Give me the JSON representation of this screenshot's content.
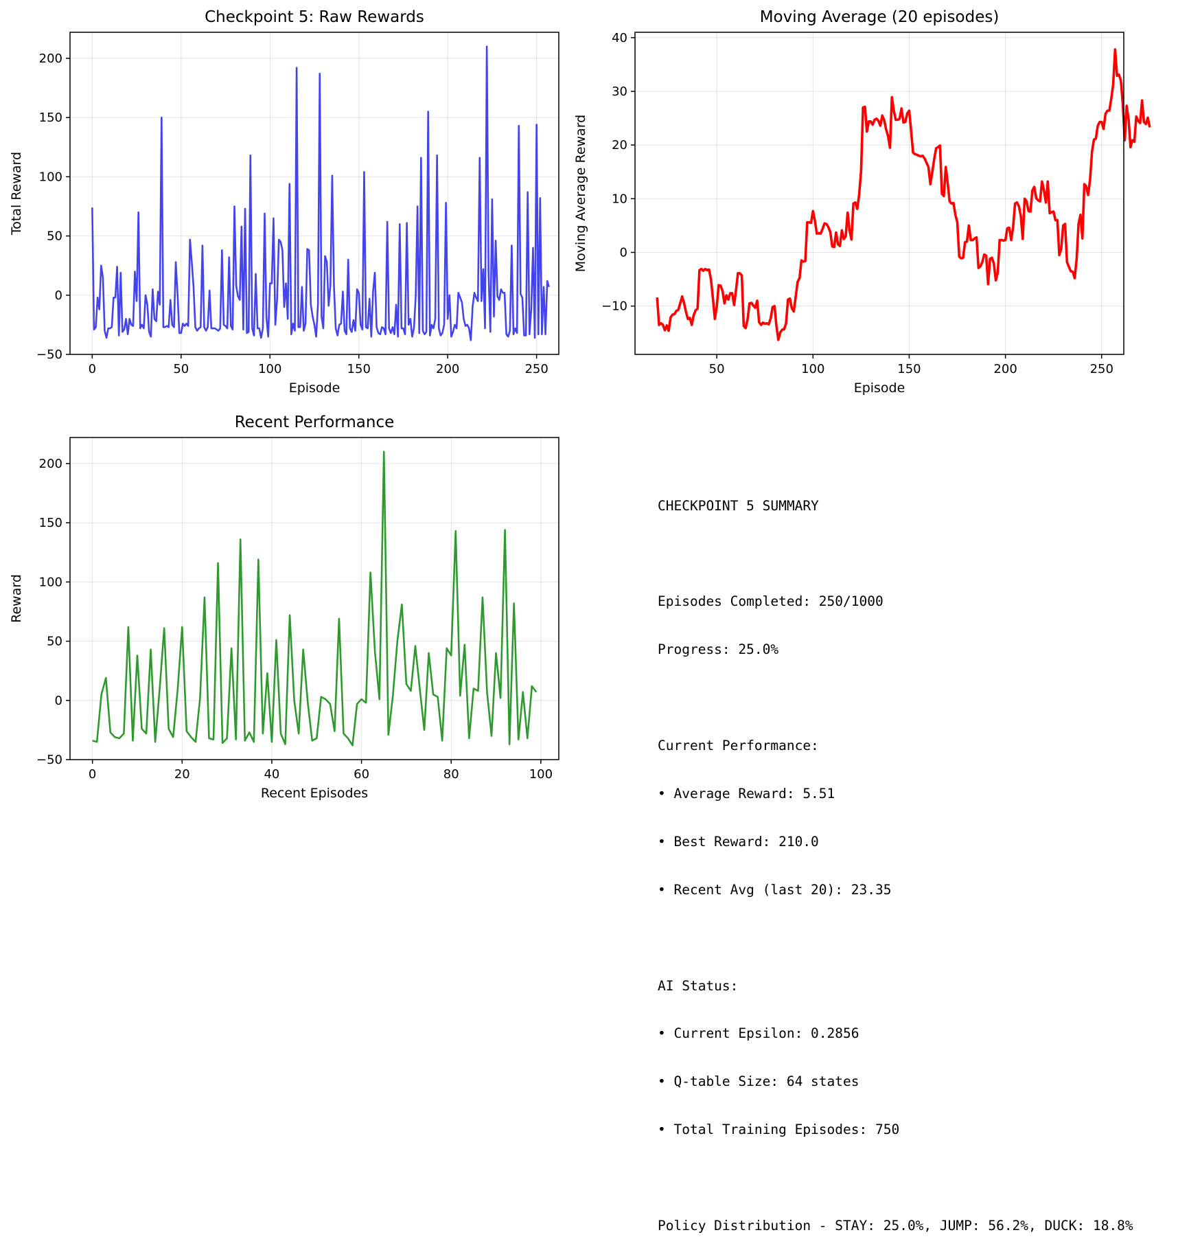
{
  "chart_data": [
    {
      "type": "line",
      "title": "Checkpoint 5: Raw Rewards",
      "xlabel": "Episode",
      "ylabel": "Total Reward",
      "xlim": [
        -12.5,
        262.5
      ],
      "ylim": [
        -50,
        222
      ],
      "xticks": [
        0,
        50,
        100,
        150,
        200,
        250
      ],
      "yticks": [
        -50,
        0,
        50,
        100,
        150,
        200
      ],
      "grid": true,
      "color": "#4444ee",
      "series": [
        {
          "x_start": 0,
          "values": [
            74,
            -29,
            -27,
            -2,
            -12,
            25,
            15,
            -30,
            -36,
            -28,
            -28,
            -27,
            -2,
            -2,
            24,
            -34,
            19,
            -31,
            -29,
            -20,
            -33,
            -20,
            -25,
            -26,
            20,
            -5,
            70,
            -28,
            -25,
            -28,
            0,
            -8,
            -31,
            -35,
            5,
            -20,
            -22,
            3,
            -8,
            150,
            -27,
            -27,
            -26,
            -27,
            -4,
            -25,
            -27,
            28,
            1,
            -32,
            -32,
            -24,
            -26,
            -24,
            -26,
            47,
            28,
            7,
            -27,
            -30,
            -28,
            -27,
            42,
            -27,
            -30,
            -27,
            4,
            -28,
            -28,
            -28,
            -29,
            -30,
            -28,
            38,
            -25,
            -26,
            -28,
            32,
            -26,
            -29,
            75,
            8,
            -1,
            -4,
            58,
            -29,
            73,
            -32,
            -31,
            118,
            -28,
            -34,
            18,
            -28,
            -28,
            -36,
            -28,
            69,
            -19,
            -35,
            10,
            10,
            65,
            -25,
            -4,
            47,
            45,
            38,
            -10,
            10,
            -20,
            94,
            -33,
            -24,
            -30,
            192,
            -27,
            -27,
            7,
            -30,
            -24,
            39,
            38,
            -8,
            -18,
            -25,
            -35,
            -8,
            187,
            -18,
            -28,
            33,
            28,
            -9,
            8,
            101,
            8,
            -28,
            -34,
            -25,
            -24,
            3,
            -30,
            -33,
            30,
            -28,
            -31,
            -21,
            -30,
            5,
            2,
            -25,
            -29,
            104,
            -27,
            -28,
            -3,
            -35,
            3,
            19,
            -27,
            -32,
            -33,
            -27,
            -28,
            -33,
            62,
            -28,
            -32,
            -27,
            -33,
            -8,
            -35,
            60,
            -28,
            -28,
            -33,
            61,
            -25,
            -20,
            -35,
            -28,
            -1,
            75,
            -32,
            116,
            -30,
            -33,
            -31,
            155,
            -34,
            -25,
            -28,
            -20,
            118,
            -28,
            -34,
            -32,
            -25,
            78,
            -20,
            0,
            -35,
            -31,
            -25,
            -28,
            2,
            -2,
            -6,
            -20,
            -26,
            -25,
            -28,
            -38,
            -10,
            2,
            -2,
            -5,
            116,
            -5,
            22,
            -28,
            210,
            18,
            -31,
            81,
            -18,
            46,
            -1,
            -4,
            5,
            2,
            2,
            -33,
            -35,
            -30,
            42,
            -33,
            -28,
            -32,
            143,
            1,
            -2,
            -34,
            -34,
            87,
            -33,
            -12,
            40,
            -36,
            144,
            -33,
            82,
            -33,
            7,
            -33,
            12,
            7
          ]
        }
      ]
    },
    {
      "type": "line",
      "title": "Moving Average (20 episodes)",
      "xlabel": "Episode",
      "ylabel": "Moving Average Reward",
      "xlim": [
        7.5,
        261.5
      ],
      "ylim": [
        -19,
        41
      ],
      "xticks": [
        50,
        100,
        150,
        200,
        250
      ],
      "yticks": [
        -10,
        0,
        10,
        20,
        30,
        40
      ],
      "grid": true,
      "color": "#ff0000",
      "series": [
        {
          "x_start": 19,
          "values": [
            -8.4,
            -13.5,
            -13.2,
            -13.5,
            -14.5,
            -13.6,
            -14.6,
            -12.1,
            -11.6,
            -11.5,
            -10.9,
            -10.7,
            -9.5,
            -8.2,
            -9.4,
            -11.1,
            -12.4,
            -12.2,
            -13.5,
            -11.7,
            -10.8,
            -10.5,
            -3.3,
            -3.1,
            -3.4,
            -3.1,
            -3.3,
            -3.2,
            -5.1,
            -8.6,
            -12.4,
            -10.1,
            -6.1,
            -6.2,
            -7.2,
            -9.5,
            -8.0,
            -8.8,
            -7.6,
            -7.6,
            -9.8,
            -7.0,
            -3.9,
            -3.9,
            -4.3,
            -13.7,
            -14.1,
            -12.5,
            -9.5,
            -9.4,
            -9.9,
            -10.3,
            -9.0,
            -13.0,
            -13.5,
            -13.1,
            -13.3,
            -13.2,
            -13.4,
            -12.3,
            -10.2,
            -10.0,
            -13.7,
            -16.3,
            -14.9,
            -14.4,
            -14.3,
            -13.2,
            -8.8,
            -8.6,
            -10.4,
            -11.0,
            -8.3,
            -5.5,
            -4.8,
            -1.5,
            -1.7,
            -1.6,
            5.6,
            5.6,
            5.5,
            7.7,
            5.9,
            3.5,
            3.6,
            3.5,
            4.4,
            5.4,
            5.3,
            4.7,
            3.8,
            1.1,
            1.0,
            3.7,
            1.5,
            1.2,
            4.1,
            2.5,
            3.0,
            7.4,
            4.1,
            2.4,
            9.1,
            9.3,
            8.1,
            10.8,
            15.2,
            27.0,
            27.1,
            22.5,
            24.4,
            24.4,
            23.8,
            24.7,
            24.9,
            24.5,
            23.6,
            25.5,
            24.6,
            22.9,
            21.7,
            19.5,
            28.9,
            26.4,
            24.7,
            24.7,
            24.9,
            26.8,
            24.2,
            24.3,
            25.9,
            26.4,
            22.6,
            18.6,
            18.3,
            18.2,
            18.0,
            17.9,
            18.0,
            17.5,
            16.7,
            15.9,
            12.7,
            15.0,
            17.4,
            19.4,
            19.6,
            19.9,
            10.9,
            10.5,
            15.9,
            12.9,
            9.5,
            9.1,
            9.2,
            7.0,
            5.6,
            -0.8,
            -1.1,
            -1.0,
            1.9,
            2.0,
            5.0,
            2.3,
            2.3,
            2.6,
            2.8,
            -2.9,
            -2.6,
            -1.8,
            -0.4,
            -0.6,
            -5.9,
            -1.2,
            -1.0,
            -2.1,
            -5.2,
            -3.8,
            2.3,
            2.3,
            2.2,
            2.3,
            4.5,
            4.6,
            2.3,
            4.7,
            9.1,
            9.3,
            8.6,
            6.8,
            2.5,
            10.0,
            9.5,
            7.7,
            7.6,
            11.5,
            12.2,
            10.1,
            9.7,
            9.5,
            13.2,
            11.6,
            9.3,
            13.2,
            7.3,
            7.5,
            7.6,
            6.0,
            6.0,
            -0.5,
            0.7,
            5.0,
            5.3,
            -1.8,
            -2.7,
            -3.5,
            -3.6,
            -4.8,
            -1.3,
            5.3,
            7.0,
            2.6,
            12.7,
            12.3,
            10.7,
            13.6,
            18.8,
            21.0,
            21.2,
            23.6,
            24.3,
            24.3,
            23.0,
            25.8,
            26.4,
            26.4,
            28.6,
            31.3,
            37.8,
            32.9,
            33.1,
            32.0,
            27.6,
            20.9,
            27.3,
            24.8,
            19.6,
            20.9,
            20.6,
            25.3,
            24.5,
            24.1,
            28.3,
            24.3,
            23.9,
            25.1,
            23.3
          ]
        }
      ]
    },
    {
      "type": "line",
      "title": "Recent Performance",
      "xlabel": "Recent Episodes",
      "ylabel": "Reward",
      "xlim": [
        -5,
        104
      ],
      "ylim": [
        -50,
        222
      ],
      "xticks": [
        0,
        20,
        40,
        60,
        80,
        100
      ],
      "yticks": [
        -50,
        0,
        50,
        100,
        150,
        200
      ],
      "grid": true,
      "color": "#2e9a2e",
      "series": [
        {
          "x_start": 0,
          "values": [
            -34,
            -35,
            5,
            19,
            -27,
            -31,
            -32,
            -28,
            62,
            -34,
            38,
            -24,
            -28,
            43,
            -35,
            10,
            61,
            -24,
            -31,
            9,
            62,
            -26,
            -31,
            -35,
            2,
            87,
            -32,
            -33,
            116,
            -36,
            -32,
            44,
            -33,
            136,
            -34,
            -27,
            -35,
            119,
            -28,
            23,
            -35,
            51,
            -28,
            -37,
            72,
            0,
            -28,
            43,
            -1,
            -34,
            -32,
            3,
            1,
            -3,
            -26,
            69,
            -28,
            -32,
            -38,
            -3,
            1,
            -2,
            108,
            41,
            1,
            210,
            -29,
            4,
            50,
            81,
            14,
            8,
            46,
            10,
            -25,
            40,
            5,
            3,
            -34,
            44,
            38,
            143,
            4,
            47,
            -32,
            10,
            8,
            87,
            7,
            -30,
            40,
            2,
            144,
            -37,
            82,
            -33,
            7,
            -32,
            12,
            7
          ]
        }
      ]
    }
  ],
  "summary": {
    "lines": [
      "CHECKPOINT 5 SUMMARY",
      "",
      "Episodes Completed: 250/1000",
      "Progress: 25.0%",
      "",
      "Current Performance:",
      "• Average Reward: 5.51",
      "• Best Reward: 210.0",
      "• Recent Avg (last 20): 23.35",
      "",
      "AI Status:",
      "• Current Epsilon: 0.2856",
      "• Q-table Size: 64 states",
      "• Total Training Episodes: 750",
      "",
      "Policy Distribution - STAY: 25.0%, JUMP: 56.2%, DUCK: 18.8%"
    ]
  }
}
